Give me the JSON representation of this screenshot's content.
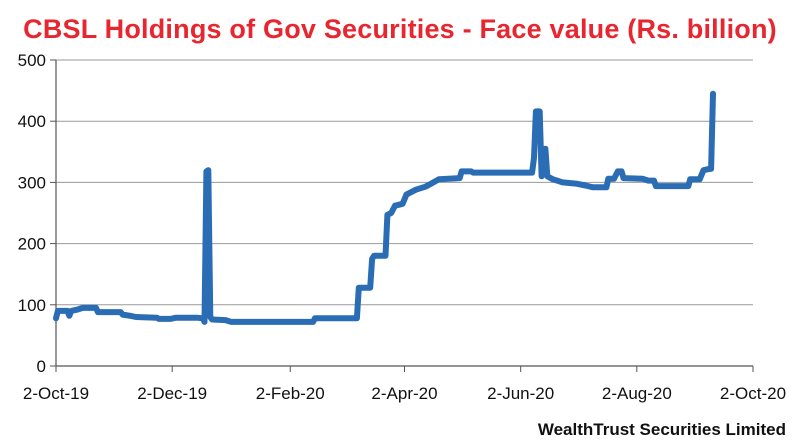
{
  "chart_data": {
    "type": "line",
    "title": "CBSL Holdings of Gov Securities - Face value (Rs. billion)",
    "source": "WealthTrust Securities Limited",
    "xlabel": "",
    "ylabel": "",
    "xlim": [
      "2019-10-02",
      "2020-10-02"
    ],
    "ylim": [
      0,
      500
    ],
    "yticks": [
      0,
      100,
      200,
      300,
      400,
      500
    ],
    "xticks": [
      {
        "date": "2019-10-02",
        "label": "2-Oct-19"
      },
      {
        "date": "2019-12-02",
        "label": "2-Dec-19"
      },
      {
        "date": "2020-02-02",
        "label": "2-Feb-20"
      },
      {
        "date": "2020-04-02",
        "label": "2-Apr-20"
      },
      {
        "date": "2020-06-02",
        "label": "2-Jun-20"
      },
      {
        "date": "2020-08-02",
        "label": "2-Aug-20"
      },
      {
        "date": "2020-10-02",
        "label": "2-Oct-20"
      }
    ],
    "grid": true,
    "line_color": "#2a6db5",
    "series": [
      {
        "points": [
          [
            "2019-10-02",
            78
          ],
          [
            "2019-10-03",
            90
          ],
          [
            "2019-10-08",
            90
          ],
          [
            "2019-10-09",
            82
          ],
          [
            "2019-10-10",
            90
          ],
          [
            "2019-10-13",
            92
          ],
          [
            "2019-10-16",
            95
          ],
          [
            "2019-10-23",
            95
          ],
          [
            "2019-10-24",
            88
          ],
          [
            "2019-11-05",
            88
          ],
          [
            "2019-11-06",
            84
          ],
          [
            "2019-11-10",
            82
          ],
          [
            "2019-11-13",
            80
          ],
          [
            "2019-11-24",
            79
          ],
          [
            "2019-11-25",
            77
          ],
          [
            "2019-12-01",
            77
          ],
          [
            "2019-12-04",
            79
          ],
          [
            "2019-12-15",
            79
          ],
          [
            "2019-12-18",
            78
          ],
          [
            "2019-12-19",
            72
          ],
          [
            "2019-12-20",
            318
          ],
          [
            "2019-12-21",
            320
          ],
          [
            "2019-12-22",
            80
          ],
          [
            "2019-12-23",
            76
          ],
          [
            "2019-12-30",
            75
          ],
          [
            "2020-01-02",
            72
          ],
          [
            "2020-01-29",
            72
          ],
          [
            "2020-02-08",
            72
          ],
          [
            "2020-02-14",
            72
          ],
          [
            "2020-02-15",
            78
          ],
          [
            "2020-03-08",
            78
          ],
          [
            "2020-03-09",
            128
          ],
          [
            "2020-03-15",
            128
          ],
          [
            "2020-03-16",
            175
          ],
          [
            "2020-03-17",
            180
          ],
          [
            "2020-03-23",
            180
          ],
          [
            "2020-03-24",
            247
          ],
          [
            "2020-03-26",
            250
          ],
          [
            "2020-03-28",
            262
          ],
          [
            "2020-04-01",
            265
          ],
          [
            "2020-04-03",
            280
          ],
          [
            "2020-04-08",
            288
          ],
          [
            "2020-04-13",
            293
          ],
          [
            "2020-04-16",
            298
          ],
          [
            "2020-04-20",
            305
          ],
          [
            "2020-05-01",
            307
          ],
          [
            "2020-05-02",
            318
          ],
          [
            "2020-05-07",
            318
          ],
          [
            "2020-05-08",
            316
          ],
          [
            "2020-06-08",
            316
          ],
          [
            "2020-06-09",
            340
          ],
          [
            "2020-06-10",
            416
          ],
          [
            "2020-06-12",
            416
          ],
          [
            "2020-06-13",
            310
          ],
          [
            "2020-06-14",
            345
          ],
          [
            "2020-06-15",
            355
          ],
          [
            "2020-06-16",
            310
          ],
          [
            "2020-06-19",
            305
          ],
          [
            "2020-06-24",
            300
          ],
          [
            "2020-07-01",
            298
          ],
          [
            "2020-07-06",
            295
          ],
          [
            "2020-07-10",
            292
          ],
          [
            "2020-07-17",
            292
          ],
          [
            "2020-07-18",
            306
          ],
          [
            "2020-07-21",
            306
          ],
          [
            "2020-07-23",
            318
          ],
          [
            "2020-07-25",
            318
          ],
          [
            "2020-07-26",
            307
          ],
          [
            "2020-08-05",
            306
          ],
          [
            "2020-08-08",
            303
          ],
          [
            "2020-08-11",
            303
          ],
          [
            "2020-08-12",
            294
          ],
          [
            "2020-08-18",
            294
          ],
          [
            "2020-08-21",
            294
          ],
          [
            "2020-08-29",
            294
          ],
          [
            "2020-08-30",
            305
          ],
          [
            "2020-09-04",
            305
          ],
          [
            "2020-09-06",
            320
          ],
          [
            "2020-09-09",
            322
          ],
          [
            "2020-09-10",
            322
          ],
          [
            "2020-09-11",
            445
          ]
        ]
      }
    ]
  }
}
